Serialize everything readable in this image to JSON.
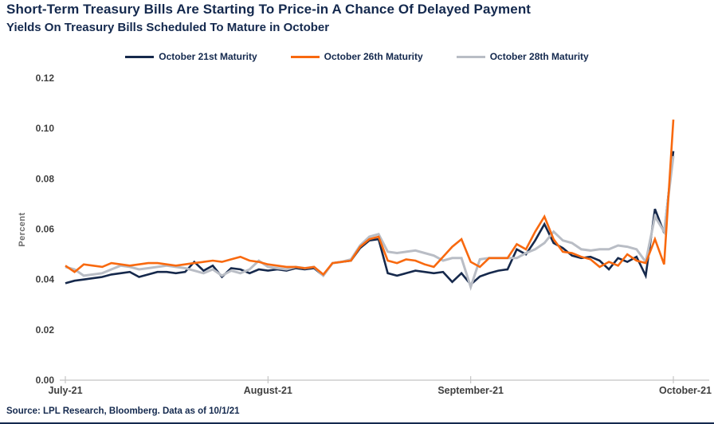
{
  "header": {
    "title": "Short-Term Treasury Bills Are Starting To Price-in A Chance Of Delayed Payment",
    "subtitle": "Yields On Treasury Bills Scheduled To Mature in October"
  },
  "source": "Source: LPL Research, Bloomberg. Data as of 10/1/21",
  "colors": {
    "navy": "#14294E",
    "orange": "#F8690F",
    "gray": "#B9BDC5",
    "axis": "#C4C4C4",
    "tick_label": "#3F3F3F",
    "axis_title": "#6E6E6E"
  },
  "chart_data": {
    "type": "line",
    "title": "Short-Term Treasury Bills Are Starting To Price-in A Chance Of Delayed Payment",
    "subtitle": "Yields On Treasury Bills Scheduled To Mature in October",
    "xlabel": "",
    "ylabel": "Percent",
    "ylim": [
      0.0,
      0.12
    ],
    "y_ticks": [
      0.0,
      0.02,
      0.04,
      0.06,
      0.08,
      0.1,
      0.12
    ],
    "x_tick_labels": [
      "July-21",
      "August-21",
      "September-21",
      "October-21"
    ],
    "x_tick_indices": [
      0,
      22,
      44,
      66
    ],
    "grid": false,
    "legend_position": "top",
    "draw_order": [
      0,
      2,
      1
    ],
    "series": [
      {
        "name": "October 21st Maturity",
        "color": "#16294C",
        "width": 2.6,
        "values": [
          0.0385,
          0.0395,
          0.04,
          0.0405,
          0.041,
          0.042,
          0.0425,
          0.043,
          0.041,
          0.042,
          0.043,
          0.043,
          0.0425,
          0.043,
          0.047,
          0.0435,
          0.0455,
          0.041,
          0.0445,
          0.044,
          0.0425,
          0.044,
          0.0435,
          0.044,
          0.0435,
          0.0445,
          0.044,
          0.0445,
          0.0415,
          0.0465,
          0.047,
          0.0475,
          0.0525,
          0.0555,
          0.056,
          0.0425,
          0.0415,
          0.0425,
          0.0435,
          0.043,
          0.0425,
          0.043,
          0.039,
          0.0425,
          0.038,
          0.0412,
          0.0425,
          0.0435,
          0.044,
          0.052,
          0.05,
          0.0555,
          0.062,
          0.0545,
          0.0525,
          0.0495,
          0.0485,
          0.049,
          0.0475,
          0.044,
          0.0485,
          0.047,
          0.049,
          0.0415,
          0.068,
          0.0585,
          0.091
        ]
      },
      {
        "name": "October 26th Maturity",
        "color": "#F8690F",
        "width": 2.6,
        "values": [
          0.0455,
          0.043,
          0.046,
          0.0455,
          0.045,
          0.0465,
          0.046,
          0.0455,
          0.046,
          0.0465,
          0.0465,
          0.046,
          0.0455,
          0.046,
          0.0465,
          0.047,
          0.0475,
          0.047,
          0.048,
          0.049,
          0.0475,
          0.047,
          0.046,
          0.0455,
          0.045,
          0.045,
          0.0445,
          0.045,
          0.042,
          0.0465,
          0.047,
          0.0475,
          0.053,
          0.056,
          0.057,
          0.0475,
          0.0465,
          0.048,
          0.0475,
          0.046,
          0.045,
          0.049,
          0.053,
          0.056,
          0.047,
          0.045,
          0.0485,
          0.0485,
          0.0485,
          0.054,
          0.052,
          0.059,
          0.065,
          0.056,
          0.051,
          0.0505,
          0.049,
          0.048,
          0.045,
          0.047,
          0.0455,
          0.05,
          0.0475,
          0.0465,
          0.056,
          0.046,
          0.1035
        ]
      },
      {
        "name": "October 28th Maturity",
        "color": "#B9BDC5",
        "width": 3,
        "values": [
          0.045,
          0.044,
          0.0415,
          0.042,
          0.0425,
          0.044,
          0.0455,
          0.045,
          0.044,
          0.0445,
          0.045,
          0.0455,
          0.045,
          0.0445,
          0.0435,
          0.0425,
          0.044,
          0.0415,
          0.0435,
          0.0425,
          0.044,
          0.0475,
          0.045,
          0.0445,
          0.044,
          0.045,
          0.0445,
          0.045,
          0.0415,
          0.0465,
          0.047,
          0.048,
          0.0535,
          0.057,
          0.058,
          0.051,
          0.0505,
          0.051,
          0.0515,
          0.0505,
          0.0495,
          0.0475,
          0.0485,
          0.0485,
          0.037,
          0.048,
          0.0485,
          0.0485,
          0.0485,
          0.0485,
          0.0505,
          0.052,
          0.0545,
          0.059,
          0.0555,
          0.0545,
          0.052,
          0.0515,
          0.052,
          0.052,
          0.0535,
          0.053,
          0.052,
          0.047,
          0.065,
          0.059,
          0.089
        ]
      }
    ]
  }
}
